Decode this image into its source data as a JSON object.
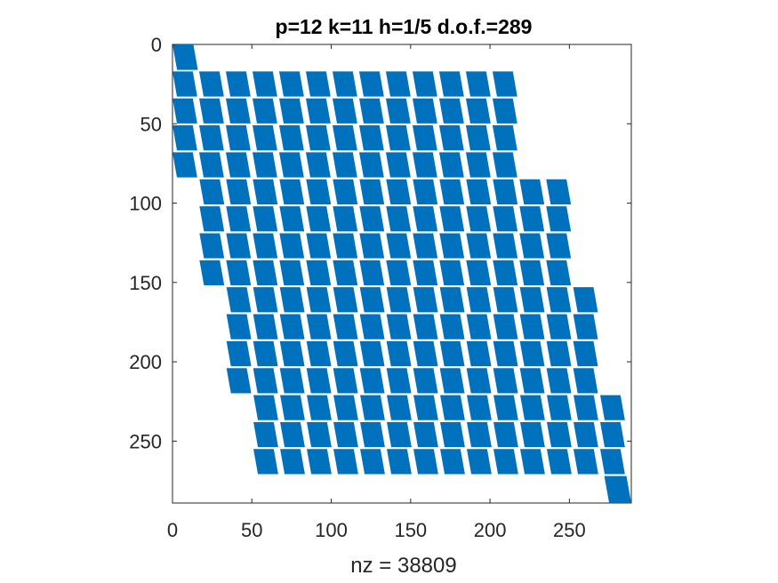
{
  "chart_data": {
    "type": "spy",
    "title": "p=12 k=11 h=1/5 d.o.f.=289",
    "xlabel": "nz = 38809",
    "ylabel": "",
    "n": 289,
    "nz": 38809,
    "xlim": [
      0,
      289
    ],
    "ylim": [
      0,
      289
    ],
    "y_reversed": true,
    "x_ticks": [
      0,
      50,
      100,
      150,
      200,
      250
    ],
    "x_tick_labels": [
      "0",
      "50",
      "100",
      "150",
      "200",
      "250"
    ],
    "y_ticks": [
      0,
      50,
      100,
      150,
      200,
      250
    ],
    "y_tick_labels": [
      "0",
      "50",
      "100",
      "150",
      "200",
      "250"
    ],
    "grid": false,
    "marker_color": "#0072BD",
    "band": {
      "first_block_rows": [
        0,
        16
      ],
      "first_block_cols": [
        0,
        16
      ],
      "last_block_rows": [
        272,
        289
      ],
      "last_block_cols": [
        272,
        289
      ],
      "row_block_size": 16.8,
      "tile_width": 16.8,
      "col_shift_per_4_row_blocks": 17,
      "tiles_per_row_block": 13
    }
  }
}
